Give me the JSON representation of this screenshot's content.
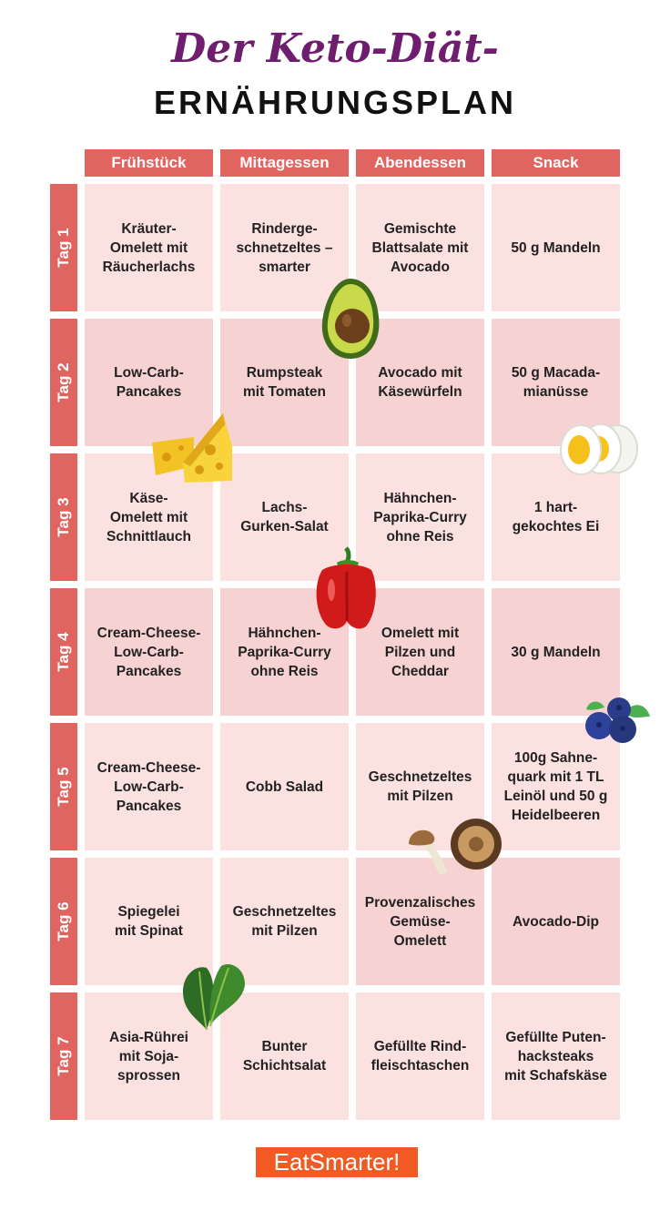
{
  "title": {
    "script": "Der Keto-Diät-",
    "main": "ERNÄHRUNGSPLAN"
  },
  "columns": [
    "Frühstück",
    "Mittagessen",
    "Abendessen",
    "Snack"
  ],
  "rows": [
    {
      "day": "Tag 1",
      "meals": [
        "Kräuter-\nOmelett mit\nRäucherlachs",
        "Rinderge-\nschnetzeltes –\nsmarter",
        "Gemischte\nBlattsalate mit\nAvocado",
        "50 g Mandeln"
      ]
    },
    {
      "day": "Tag 2",
      "meals": [
        "Low-Carb-\nPancakes",
        "Rumpsteak\nmit Tomaten",
        "Avocado mit\nKäsewürfeln",
        "50 g Macada-\nmianüsse"
      ]
    },
    {
      "day": "Tag 3",
      "meals": [
        "Käse-\nOmelett mit\nSchnittlauch",
        "Lachs-\nGurken-Salat",
        "Hähnchen-\nPaprika-Curry\nohne Reis",
        "1 hart-\ngekochtes Ei"
      ]
    },
    {
      "day": "Tag 4",
      "meals": [
        "Cream-Cheese-\nLow-Carb-\nPancakes",
        "Hähnchen-\nPaprika-Curry\nohne Reis",
        "Omelett mit\nPilzen und\nCheddar",
        "30 g Mandeln"
      ]
    },
    {
      "day": "Tag 5",
      "meals": [
        "Cream-Cheese-\nLow-Carb-\nPancakes",
        "Cobb Salad",
        "Geschnetzeltes\nmit Pilzen",
        "100g Sahne-\nquark mit  1 TL\nLeinöl und 50 g\nHeidelbeeren"
      ]
    },
    {
      "day": "Tag 6",
      "meals": [
        "Spiegelei\nmit Spinat",
        "Geschnetzeltes\nmit Pilzen",
        "Provenzalisches\nGemüse-\nOmelett",
        "Avocado-Dip"
      ]
    },
    {
      "day": "Tag 7",
      "meals": [
        "Asia-Rührei\nmit Soja-\nsprossen",
        "Bunter\nSchichtsalat",
        "Gefüllte Rind-\nfleischtaschen",
        "Gefüllte Puten-\nhacksteaks\nmit Schafskäse"
      ]
    }
  ],
  "logo": "EatSmarter!",
  "colors": {
    "accent": "#e06460",
    "title": "#6f1e6f",
    "cell_light": "#fce1e1",
    "cell_dark": "#f7d2d2",
    "logo_bg": "#f15a22"
  },
  "decorations": [
    "avocado-icon",
    "cheese-icon",
    "egg-icon",
    "pepper-icon",
    "blueberry-icon",
    "mushroom-icon",
    "spinach-icon"
  ]
}
